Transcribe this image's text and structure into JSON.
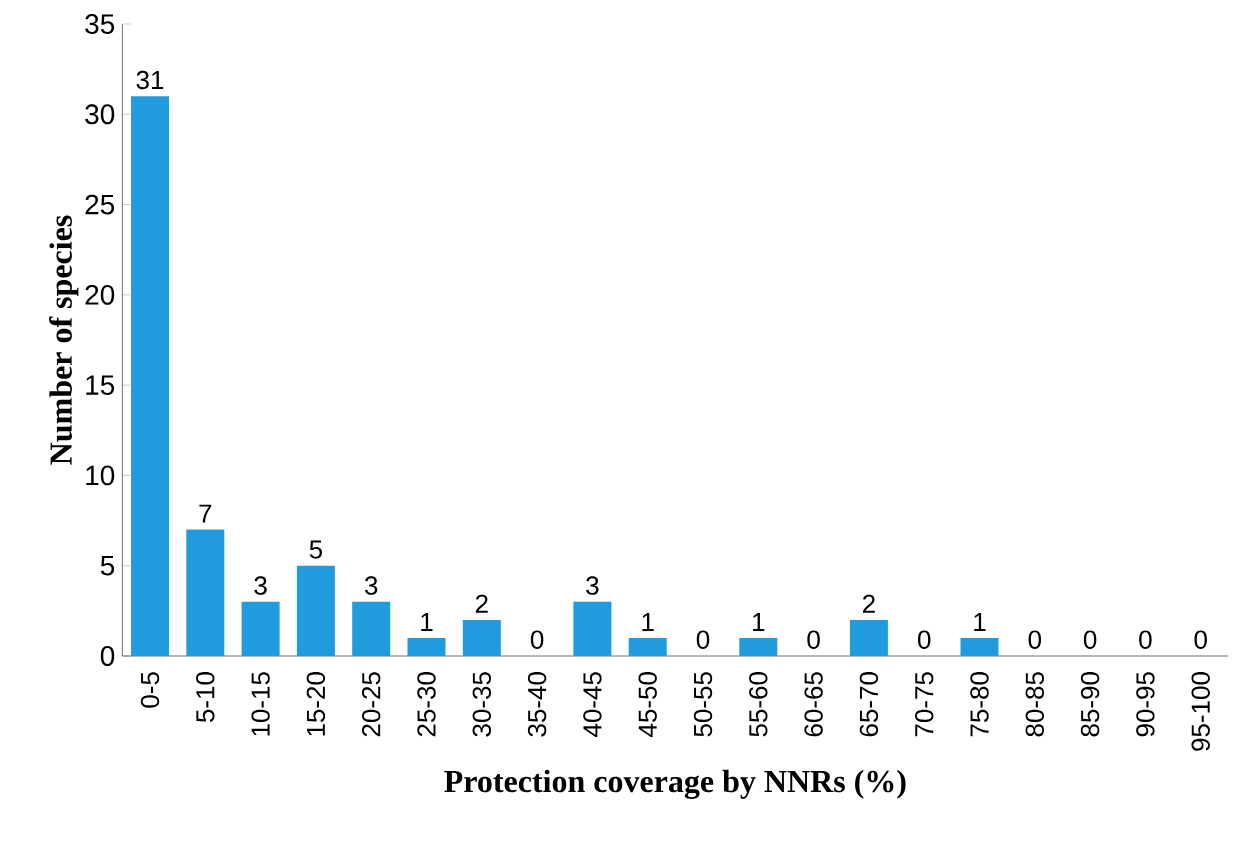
{
  "chart_data": {
    "type": "bar",
    "xlabel": "Protection coverage by NNRs (%)",
    "ylabel": "Number of species",
    "categories": [
      "0-5",
      "5-10",
      "10-15",
      "15-20",
      "20-25",
      "25-30",
      "30-35",
      "35-40",
      "40-45",
      "45-50",
      "50-55",
      "55-60",
      "60-65",
      "65-70",
      "70-75",
      "75-80",
      "80-85",
      "85-90",
      "90-95",
      "95-100"
    ],
    "values": [
      31,
      7,
      3,
      5,
      3,
      1,
      2,
      0,
      3,
      1,
      0,
      1,
      0,
      2,
      0,
      1,
      0,
      0,
      0,
      0
    ],
    "color": "#1f9bde",
    "ylim": [
      0,
      35
    ],
    "yticks": [
      0,
      5,
      10,
      15,
      20,
      25,
      30,
      35
    ],
    "data_labels": true,
    "grid": false
  }
}
